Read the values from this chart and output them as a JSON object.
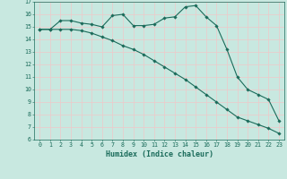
{
  "xlabel": "Humidex (Indice chaleur)",
  "ylabel": "",
  "bg_color": "#c8e8e0",
  "grid_color": "#f0c8c8",
  "line_color": "#1a6b5a",
  "x_values": [
    0,
    1,
    2,
    3,
    4,
    5,
    6,
    7,
    8,
    9,
    10,
    11,
    12,
    13,
    14,
    15,
    16,
    17,
    18,
    19,
    20,
    21,
    22,
    23
  ],
  "line1_y": [
    14.8,
    14.8,
    15.5,
    15.5,
    15.3,
    15.2,
    15.0,
    15.9,
    16.0,
    15.1,
    15.1,
    15.2,
    15.7,
    15.8,
    16.6,
    16.7,
    15.8,
    15.1,
    13.2,
    11.0,
    10.0,
    9.6,
    9.2,
    7.5
  ],
  "line2_y": [
    14.8,
    14.8,
    14.8,
    14.8,
    14.7,
    14.5,
    14.2,
    13.9,
    13.5,
    13.2,
    12.8,
    12.3,
    11.8,
    11.3,
    10.8,
    10.2,
    9.6,
    9.0,
    8.4,
    7.8,
    7.5,
    7.2,
    6.9,
    6.5
  ],
  "ylim": [
    6,
    17
  ],
  "xlim": [
    -0.5,
    23.5
  ],
  "yticks": [
    6,
    7,
    8,
    9,
    10,
    11,
    12,
    13,
    14,
    15,
    16,
    17
  ],
  "xticks": [
    0,
    1,
    2,
    3,
    4,
    5,
    6,
    7,
    8,
    9,
    10,
    11,
    12,
    13,
    14,
    15,
    16,
    17,
    18,
    19,
    20,
    21,
    22,
    23
  ],
  "tick_fontsize": 4.8,
  "xlabel_fontsize": 6.0
}
